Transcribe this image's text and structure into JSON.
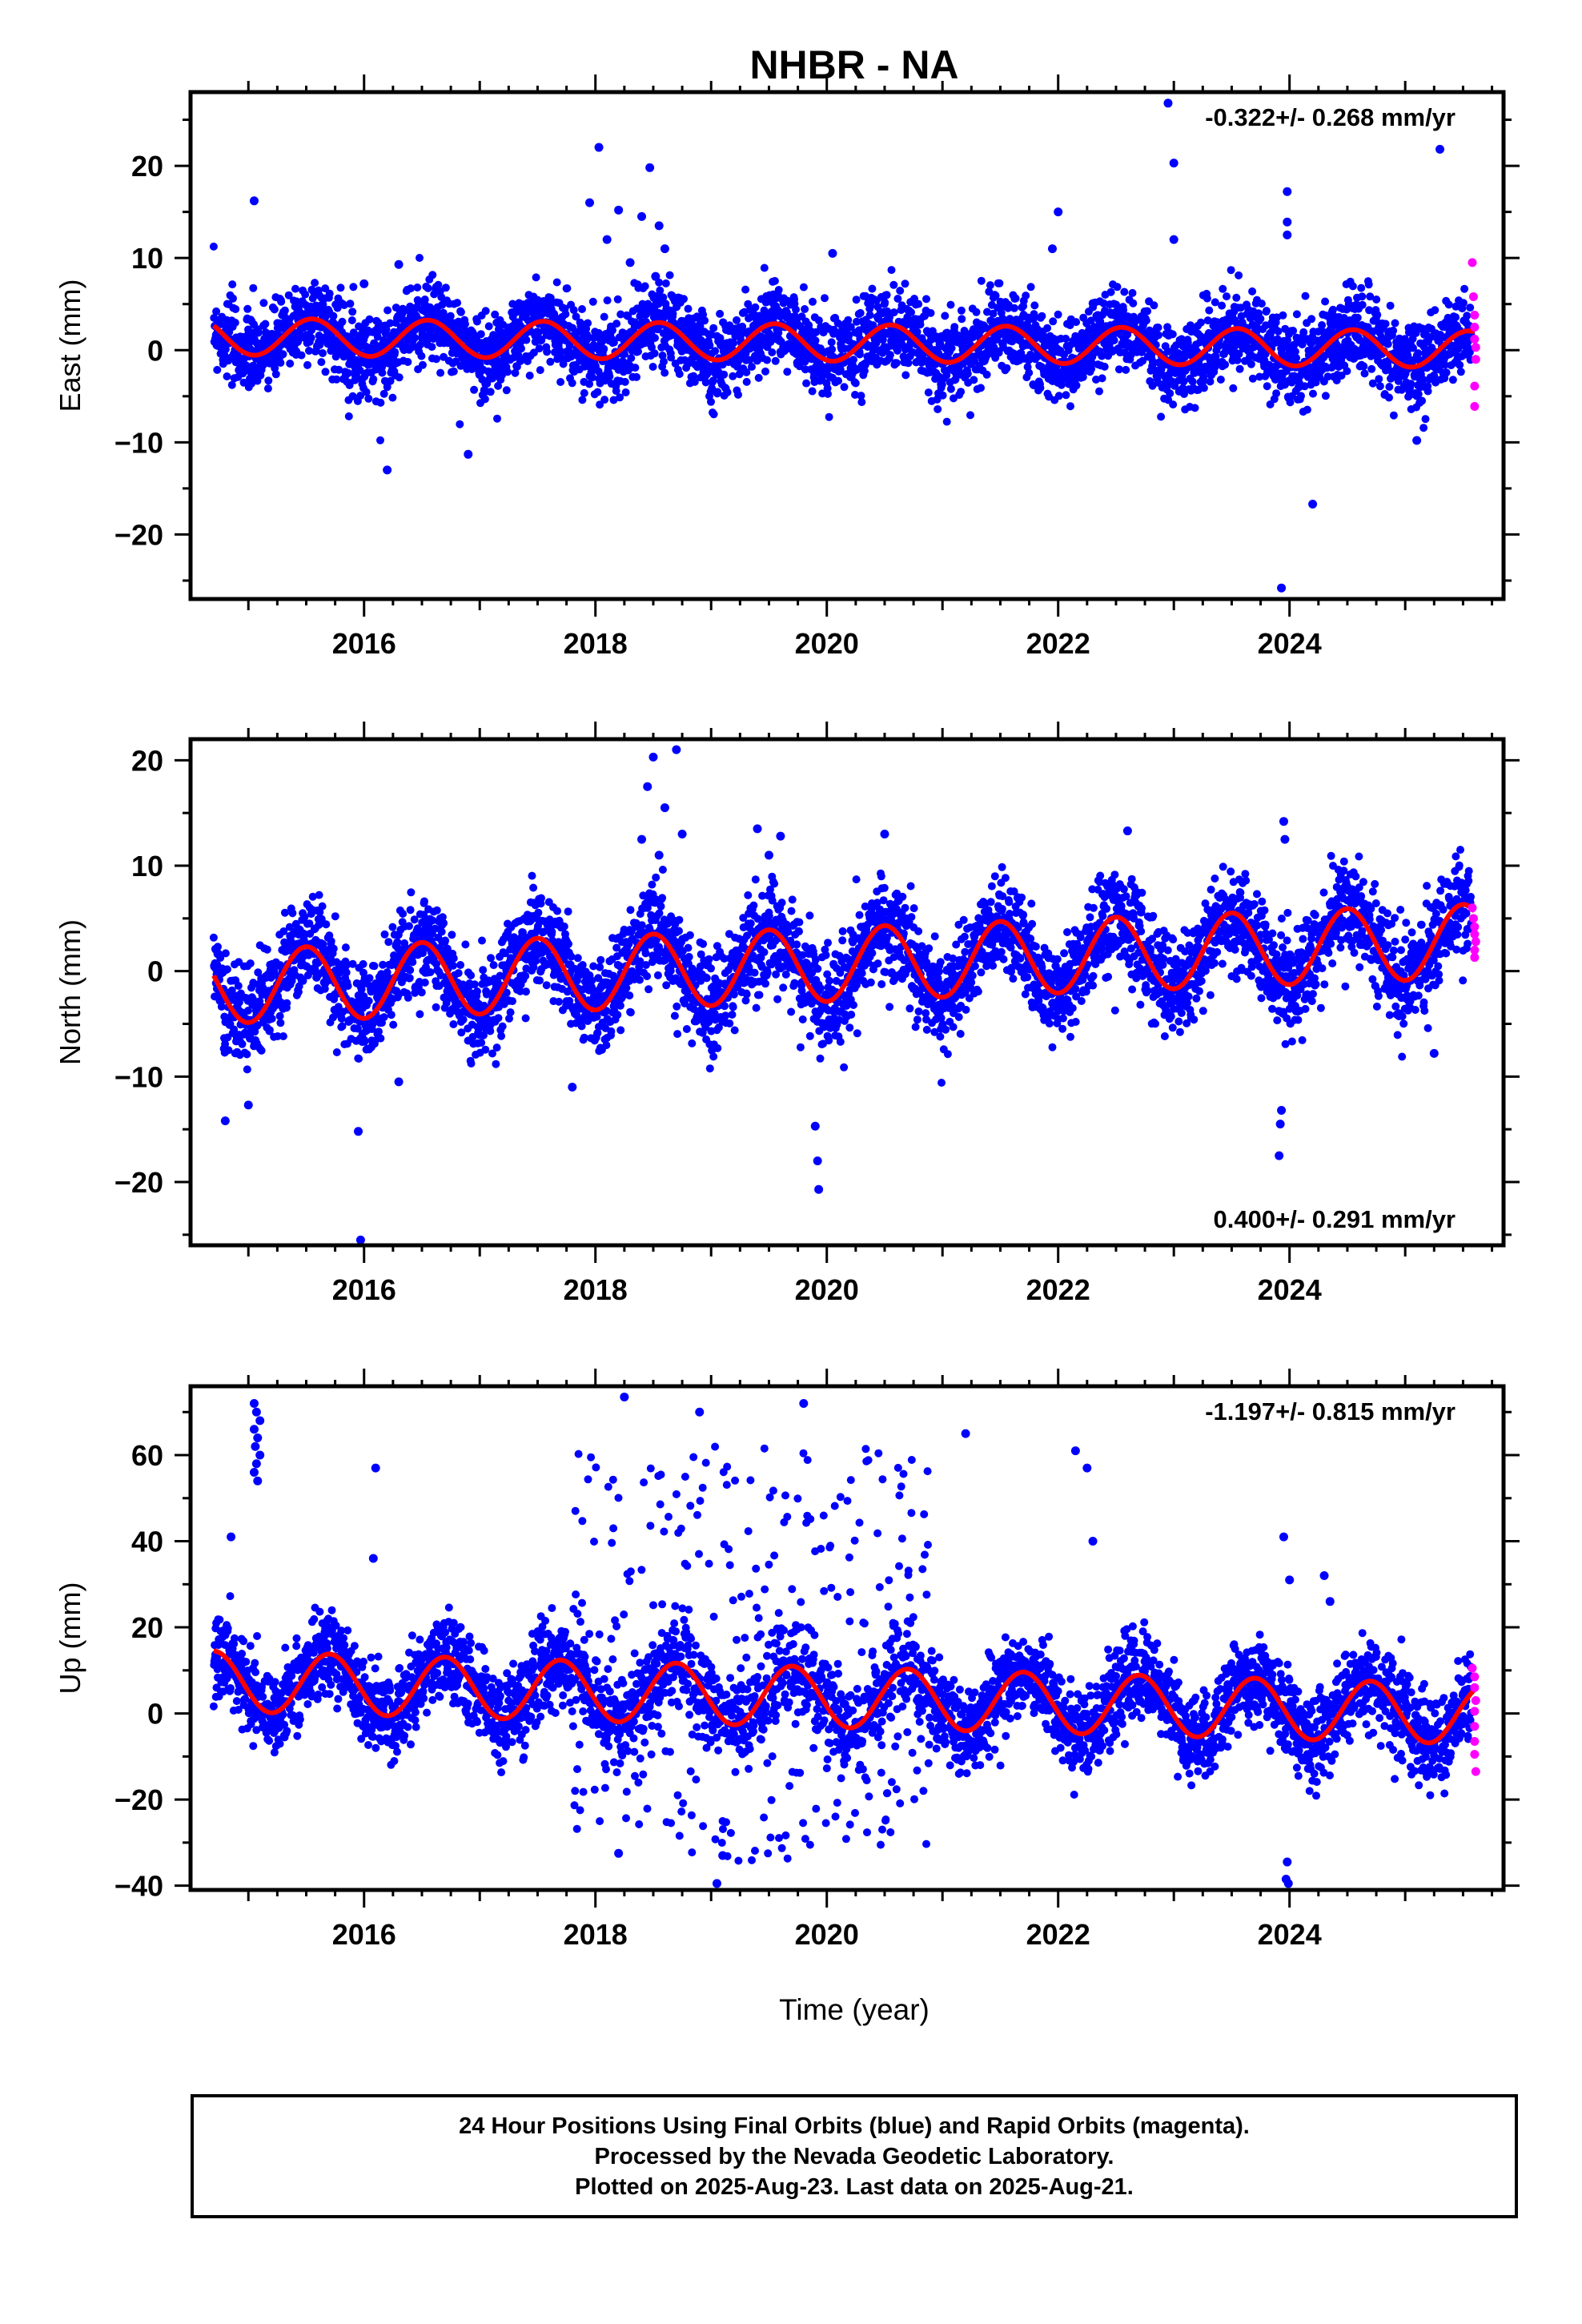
{
  "chart_data": {
    "title": "NHBR - NA",
    "xlabel": "Time (year)",
    "xticks": [
      "2016",
      "2018",
      "2020",
      "2022",
      "2024"
    ],
    "colors": {
      "final": "#0000ff",
      "rapid": "#ff00ff",
      "model": "#ff0000"
    },
    "panels": [
      {
        "type": "scatter",
        "component": "east",
        "ylabel": "East (mm)",
        "rate": "-0.322+/- 0.268 mm/yr",
        "rate_position": "top-right",
        "xlim": [
          2014.5,
          2025.85
        ],
        "ylim": [
          -27,
          28
        ],
        "yticks": [
          "20",
          "10",
          "0",
          "−10",
          "−20"
        ],
        "ytick_values": [
          20,
          10,
          0,
          -10,
          -20
        ],
        "seasonal_model": {
          "offset_at_start": 1.5,
          "rate": -0.13,
          "amplitude": 2.0,
          "phase_peak": 0.55,
          "start": 2014.7,
          "end": 2025.6
        },
        "scatter_sigma": 2.2,
        "outliers": [
          [
            2018.03,
            22.0
          ],
          [
            2018.47,
            19.8
          ],
          [
            2018.2,
            15.2
          ],
          [
            2018.4,
            14.5
          ],
          [
            2018.55,
            13.5
          ],
          [
            2017.95,
            16.0
          ],
          [
            2018.6,
            11.0
          ],
          [
            2018.1,
            12.0
          ],
          [
            2018.3,
            9.5
          ],
          [
            2018.52,
            8.0
          ],
          [
            2015.05,
            16.2
          ],
          [
            2016.3,
            9.3
          ],
          [
            2016.2,
            -13.0
          ],
          [
            2016.9,
            -11.3
          ],
          [
            2022.0,
            15.0
          ],
          [
            2023.0,
            20.3
          ],
          [
            2022.95,
            26.8
          ],
          [
            2023.0,
            12.0
          ],
          [
            2023.98,
            17.2
          ],
          [
            2023.98,
            13.9
          ],
          [
            2023.98,
            12.5
          ],
          [
            2024.2,
            -16.7
          ],
          [
            2023.93,
            -25.8
          ],
          [
            2025.3,
            21.8
          ],
          [
            2025.1,
            -9.8
          ],
          [
            2021.95,
            11.0
          ],
          [
            2020.05,
            10.5
          ],
          [
            2016.0,
            7.2
          ]
        ],
        "rapid": [
          [
            2025.58,
            9.5
          ],
          [
            2025.59,
            5.8
          ],
          [
            2025.6,
            3.8
          ],
          [
            2025.6,
            2.5
          ],
          [
            2025.6,
            1.2
          ],
          [
            2025.61,
            0.3
          ],
          [
            2025.61,
            -1.0
          ],
          [
            2025.6,
            -3.9
          ],
          [
            2025.6,
            -6.1
          ]
        ]
      },
      {
        "type": "scatter",
        "component": "north",
        "ylabel": "North (mm)",
        "rate": "0.400+/- 0.291 mm/yr",
        "rate_position": "bottom-right",
        "xlim": [
          2014.5,
          2025.85
        ],
        "ylim": [
          -26,
          22
        ],
        "yticks": [
          "20",
          "10",
          "0",
          "−10",
          "−20"
        ],
        "ytick_values": [
          20,
          10,
          0,
          -10,
          -20
        ],
        "seasonal_model": {
          "offset_at_start": -1.5,
          "rate": 0.4,
          "amplitude": 3.5,
          "phase_peak": 0.5,
          "start": 2014.7,
          "end": 2025.6
        },
        "scatter_sigma": 2.3,
        "outliers": [
          [
            2018.5,
            20.3
          ],
          [
            2018.7,
            21.0
          ],
          [
            2018.45,
            17.5
          ],
          [
            2018.6,
            15.5
          ],
          [
            2018.4,
            12.5
          ],
          [
            2018.55,
            11.0
          ],
          [
            2018.75,
            13.0
          ],
          [
            2019.4,
            13.5
          ],
          [
            2019.6,
            12.8
          ],
          [
            2019.5,
            11.0
          ],
          [
            2015.0,
            -12.7
          ],
          [
            2014.8,
            -14.2
          ],
          [
            2015.95,
            -15.2
          ],
          [
            2015.97,
            -25.5
          ],
          [
            2019.9,
            -14.7
          ],
          [
            2019.92,
            -18.0
          ],
          [
            2019.93,
            -20.7
          ],
          [
            2020.5,
            13.0
          ],
          [
            2022.6,
            13.3
          ],
          [
            2023.95,
            14.2
          ],
          [
            2023.96,
            12.5
          ],
          [
            2023.93,
            -13.2
          ],
          [
            2023.92,
            -14.5
          ],
          [
            2023.91,
            -17.5
          ],
          [
            2017.8,
            -11.0
          ],
          [
            2016.3,
            -10.5
          ],
          [
            2025.25,
            -7.8
          ]
        ],
        "rapid": [
          [
            2025.58,
            6.0
          ],
          [
            2025.59,
            5.0
          ],
          [
            2025.6,
            4.2
          ],
          [
            2025.6,
            3.5
          ],
          [
            2025.61,
            2.8
          ],
          [
            2025.6,
            2.0
          ],
          [
            2025.6,
            1.3
          ]
        ]
      },
      {
        "type": "scatter",
        "component": "up",
        "ylabel": "Up (mm)",
        "rate": "-1.197+/- 0.815 mm/yr",
        "rate_position": "top-right",
        "xlim": [
          2014.5,
          2025.85
        ],
        "ylim": [
          -41,
          76
        ],
        "yticks": [
          "60",
          "40",
          "20",
          "0",
          "−20",
          "−40"
        ],
        "ytick_values": [
          60,
          40,
          20,
          0,
          -20,
          -40
        ],
        "seasonal_model": {
          "offset_at_start": 7.5,
          "rate": -0.7,
          "amplitude": 7.0,
          "phase_peak": 0.7,
          "start": 2014.7,
          "end": 2025.6
        },
        "scatter_sigma": 5.0,
        "outliers": [
          [
            2015.05,
            72.0
          ],
          [
            2015.07,
            70.0
          ],
          [
            2015.1,
            68.0
          ],
          [
            2015.05,
            66.0
          ],
          [
            2015.08,
            64.0
          ],
          [
            2015.06,
            62.0
          ],
          [
            2015.1,
            60.0
          ],
          [
            2015.07,
            58.0
          ],
          [
            2015.05,
            56.0
          ],
          [
            2015.08,
            54.0
          ],
          [
            2014.85,
            41.0
          ],
          [
            2016.1,
            57.0
          ],
          [
            2016.08,
            36.0
          ],
          [
            2018.25,
            73.5
          ],
          [
            2018.9,
            70.0
          ],
          [
            2019.8,
            72.0
          ],
          [
            2021.2,
            65.0
          ],
          [
            2022.15,
            61.0
          ],
          [
            2022.25,
            57.0
          ],
          [
            2022.3,
            40.0
          ],
          [
            2023.95,
            41.0
          ],
          [
            2024.0,
            31.0
          ],
          [
            2024.3,
            32.0
          ],
          [
            2024.35,
            26.0
          ],
          [
            2023.98,
            -34.5
          ],
          [
            2023.97,
            -38.5
          ],
          [
            2023.99,
            -39.5
          ],
          [
            2018.2,
            -32.5
          ],
          [
            2019.05,
            -39.5
          ],
          [
            2019.1,
            -33.0
          ]
        ],
        "cloud": {
          "start": 2017.8,
          "end": 2020.9,
          "low": -35,
          "high": 62
        },
        "rapid": [
          [
            2025.58,
            10.5
          ],
          [
            2025.6,
            8.5
          ],
          [
            2025.6,
            6.0
          ],
          [
            2025.61,
            3.0
          ],
          [
            2025.6,
            0.5
          ],
          [
            2025.6,
            -3.0
          ],
          [
            2025.6,
            -6.5
          ],
          [
            2025.6,
            -9.5
          ],
          [
            2025.61,
            -13.5
          ]
        ]
      }
    ]
  },
  "footer": {
    "line1": "24 Hour Positions Using Final Orbits (blue) and Rapid Orbits (magenta).",
    "line2": "Processed by the Nevada Geodetic Laboratory.",
    "line3": "Plotted on 2025-Aug-23. Last data on 2025-Aug-21."
  }
}
